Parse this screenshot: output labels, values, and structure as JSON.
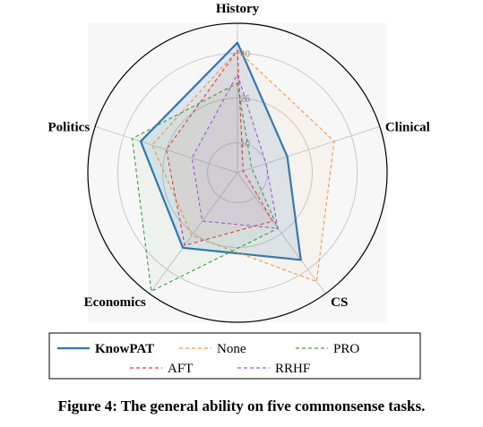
{
  "chart_data": {
    "type": "radar",
    "axes": [
      "History",
      "Clinical",
      "CS",
      "Economics",
      "Politics"
    ],
    "ticks": [
      10,
      25,
      40
    ],
    "rlim": [
      0,
      50
    ],
    "grid": true,
    "legend_position": "bottom",
    "series": [
      {
        "name": "KnowPAT",
        "color": "#2e75b6",
        "dash": "solid",
        "values": [
          43.5,
          17.5,
          36,
          31,
          34
        ]
      },
      {
        "name": "None",
        "color": "#f0963c",
        "dash": "dashed",
        "values": [
          41,
          34,
          45,
          26,
          30
        ]
      },
      {
        "name": "PRO",
        "color": "#3a9b3a",
        "dash": "dashed",
        "values": [
          30,
          5,
          23,
          49,
          37
        ]
      },
      {
        "name": "AFT",
        "color": "#e03a3a",
        "dash": "dashed",
        "values": [
          41,
          2,
          20,
          30,
          25
        ]
      },
      {
        "name": "RRHF",
        "color": "#9b59d0",
        "dash": "dashed",
        "values": [
          33,
          10,
          23,
          20,
          16
        ]
      }
    ]
  },
  "caption": "Figure 4: The general ability on five commonsense tasks."
}
